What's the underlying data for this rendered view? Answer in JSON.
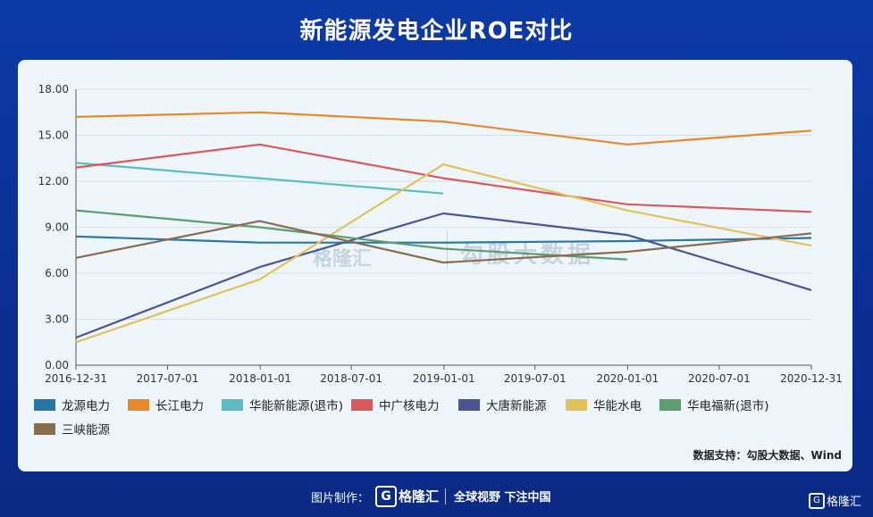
{
  "page": {
    "title": "新能源发电企业ROE对比"
  },
  "source_note": "数据支持：勾股大数据、Wind",
  "watermarks": {
    "left": "格隆汇",
    "right": "勾股大数据"
  },
  "footer": {
    "credit_label": "图片制作：",
    "brand_icon": "G",
    "brand_name": "格隆汇",
    "slogan": "全球视野 下注中国",
    "corner_icon": "G",
    "corner_name": "格隆汇"
  },
  "chart_data": {
    "type": "line",
    "title": "新能源发电企业ROE对比",
    "xlabel": "",
    "ylabel": "",
    "x_ticks": [
      "2016-12-31",
      "2017-07-01",
      "2018-01-01",
      "2018-07-01",
      "2019-01-01",
      "2019-07-01",
      "2020-01-01",
      "2020-07-01",
      "2020-12-31"
    ],
    "y_ticks": [
      "0.00",
      "3.00",
      "6.00",
      "9.00",
      "12.00",
      "15.00",
      "18.00"
    ],
    "ylim": [
      0,
      18
    ],
    "x_dates": [
      "2016-12-31",
      "2017-12-31",
      "2018-12-31",
      "2019-12-31",
      "2020-12-31"
    ],
    "grid": "horizontal",
    "legend_position": "bottom",
    "series": [
      {
        "name": "龙源电力",
        "color": "#2777a8",
        "values": [
          8.4,
          8.0,
          8.0,
          8.1,
          8.3
        ]
      },
      {
        "name": "长江电力",
        "color": "#e8882a",
        "values": [
          16.2,
          16.5,
          15.9,
          14.4,
          15.3
        ]
      },
      {
        "name": "华能新能源(退市)",
        "color": "#5bbcc2",
        "values": [
          13.2,
          12.2,
          11.2,
          null,
          null
        ]
      },
      {
        "name": "中广核电力",
        "color": "#d95a5c",
        "values": [
          12.9,
          14.4,
          12.2,
          10.5,
          10.0
        ]
      },
      {
        "name": "大唐新能源",
        "color": "#4a5592",
        "values": [
          1.8,
          6.4,
          9.9,
          8.5,
          4.9
        ]
      },
      {
        "name": "华能水电",
        "color": "#e2c25a",
        "values": [
          1.5,
          5.6,
          13.1,
          10.1,
          7.8
        ]
      },
      {
        "name": "华电福新(退市)",
        "color": "#5c9e6e",
        "values": [
          10.1,
          9.0,
          7.6,
          6.9,
          null
        ]
      },
      {
        "name": "三峡能源",
        "color": "#8a6c50",
        "values": [
          7.0,
          9.4,
          6.7,
          7.4,
          8.6
        ]
      }
    ]
  }
}
